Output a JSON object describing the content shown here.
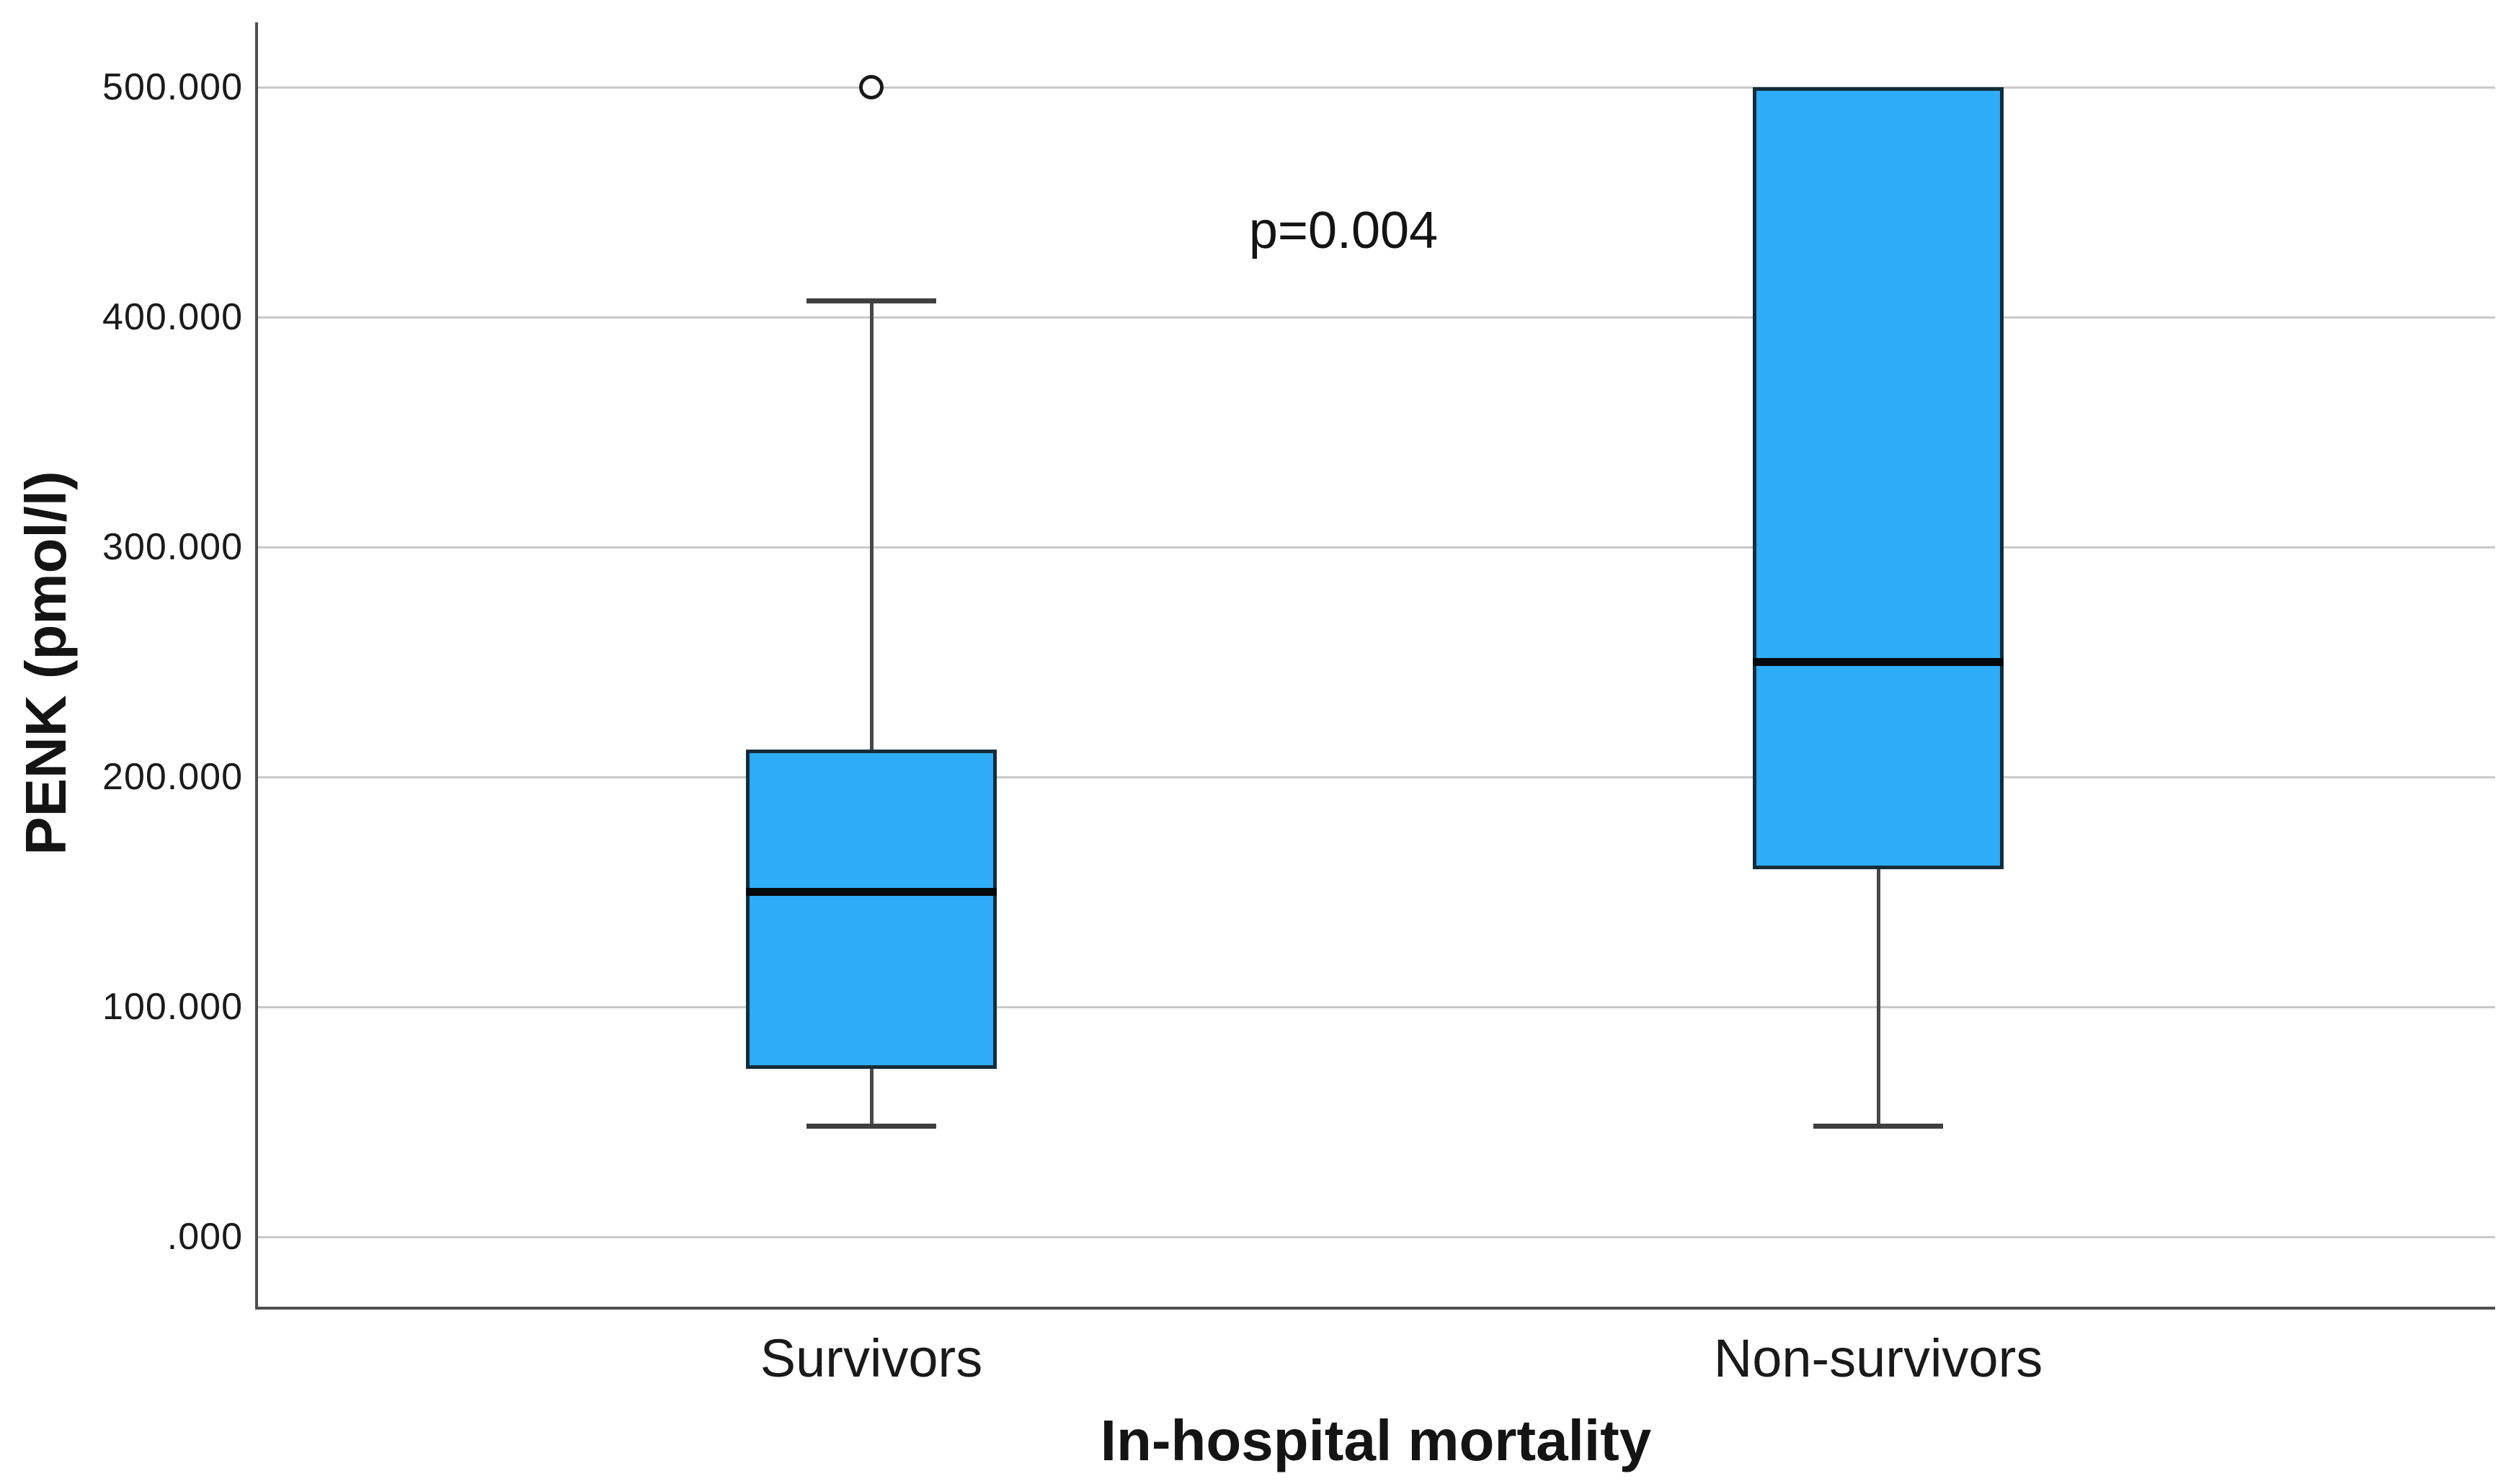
{
  "figure": {
    "background": "#FFFFFF"
  },
  "chart_data": {
    "type": "boxplot",
    "title": "",
    "xlabel": "In-hospital mortality",
    "ylabel": "PENK (pmol/l)",
    "annotation": {
      "text": "p=0.004"
    },
    "ylim": [
      0,
      500
    ],
    "grid": true,
    "legend": false,
    "units": "pmol/l (tick labels use 3-decimal format)",
    "y_ticks": [
      {
        "value": 0,
        "label": ".000"
      },
      {
        "value": 100,
        "label": "100.000"
      },
      {
        "value": 200,
        "label": "200.000"
      },
      {
        "value": 300,
        "label": "300.000"
      },
      {
        "value": 400,
        "label": "400.000"
      },
      {
        "value": 500,
        "label": "500.000"
      }
    ],
    "categories": [
      "Survivors",
      "Non-survivors"
    ],
    "series": [
      {
        "category": "Survivors",
        "whisker_low": 48,
        "q1": 73,
        "median": 150,
        "q3": 212,
        "whisker_high": 407,
        "outliers": [
          500
        ]
      },
      {
        "category": "Non-survivors",
        "whisker_low": 48,
        "q1": 160,
        "median": 250,
        "q3": 500,
        "whisker_high": 500,
        "outliers": []
      }
    ],
    "colors": {
      "box_fill": "#2EACF8",
      "box_border": "#132D39",
      "median": "#04090D",
      "whisker": "#474747",
      "gridline": "#C9C9C9",
      "axis": "#4F4F4F",
      "text": "#1A1A1A"
    }
  }
}
